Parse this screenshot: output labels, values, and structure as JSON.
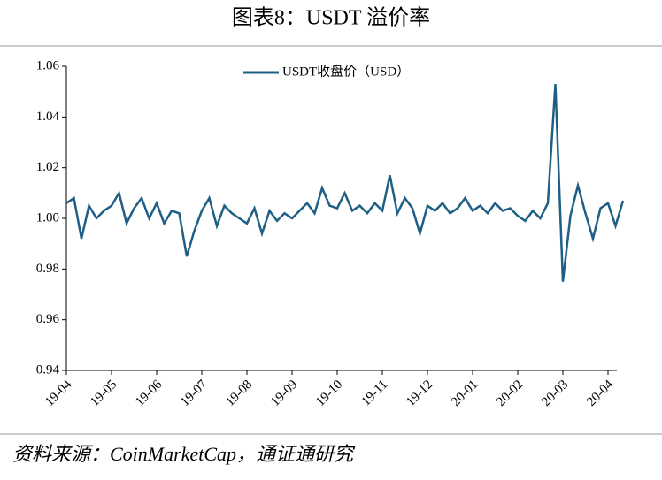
{
  "chart_data": {
    "type": "line",
    "title": "图表8：USDT 溢价率",
    "source": "资料来源：CoinMarketCap，通证通研究",
    "categories": [
      "19-04",
      null,
      null,
      null,
      null,
      null,
      "19-05",
      null,
      null,
      null,
      null,
      null,
      "19-06",
      null,
      null,
      null,
      null,
      null,
      "19-07",
      null,
      null,
      null,
      null,
      null,
      "19-08",
      null,
      null,
      null,
      null,
      null,
      "19-09",
      null,
      null,
      null,
      null,
      null,
      "19-10",
      null,
      null,
      null,
      null,
      null,
      "19-11",
      null,
      null,
      null,
      null,
      null,
      "19-12",
      null,
      null,
      null,
      null,
      null,
      "20-01",
      null,
      null,
      null,
      null,
      null,
      "20-02",
      null,
      null,
      null,
      null,
      null,
      "20-03",
      null,
      null,
      null,
      null,
      null,
      "20-04",
      null,
      null
    ],
    "series": [
      {
        "name": "USDT收盘价（USD）",
        "color": "#1f5f86",
        "values": [
          1.006,
          1.008,
          0.992,
          1.005,
          1.0,
          1.003,
          1.005,
          1.01,
          0.998,
          1.004,
          1.008,
          1.0,
          1.006,
          0.998,
          1.003,
          1.002,
          0.985,
          0.995,
          1.003,
          1.008,
          0.997,
          1.005,
          1.002,
          1.0,
          0.998,
          1.004,
          0.994,
          1.003,
          0.999,
          1.002,
          1.0,
          1.003,
          1.006,
          1.002,
          1.012,
          1.005,
          1.004,
          1.01,
          1.003,
          1.005,
          1.002,
          1.006,
          1.003,
          1.017,
          1.002,
          1.008,
          1.004,
          0.994,
          1.005,
          1.003,
          1.006,
          1.002,
          1.004,
          1.008,
          1.003,
          1.005,
          1.002,
          1.006,
          1.003,
          1.004,
          1.001,
          0.999,
          1.003,
          1.0,
          1.006,
          1.053,
          0.975,
          1.001,
          1.013,
          1.002,
          0.992,
          1.004,
          1.006,
          0.997,
          1.007
        ]
      }
    ],
    "ylim": [
      0.94,
      1.06
    ],
    "yticks": [
      0.94,
      0.96,
      0.98,
      {
        "value": 1.0,
        "label": "1.00"
      },
      1.02,
      1.04,
      1.06
    ],
    "legend": "top"
  }
}
